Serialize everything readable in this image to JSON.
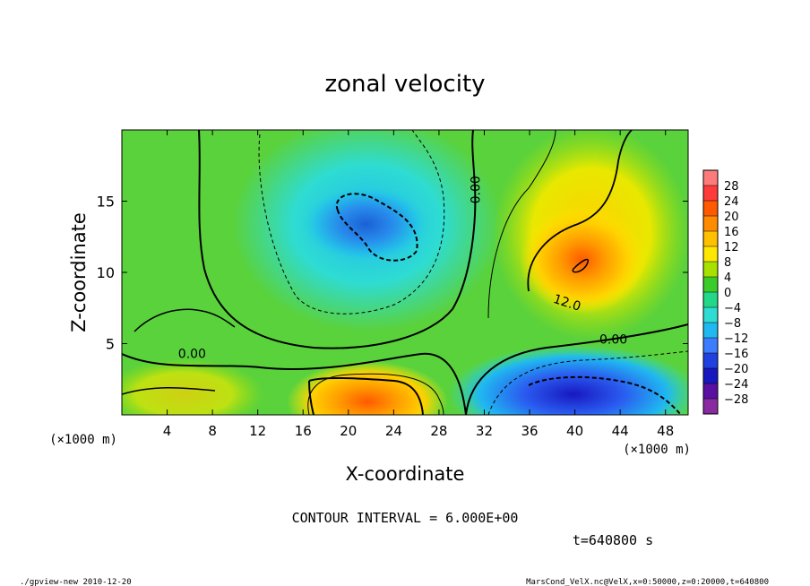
{
  "chart_data": {
    "type": "heatmap",
    "title": "zonal velocity",
    "xlabel": "X-coordinate",
    "ylabel": "Z-coordinate",
    "x_unit_label": "(×1000 m)",
    "y_unit_label": "(×1000 m)",
    "xlim": [
      0,
      50
    ],
    "ylim": [
      0,
      20
    ],
    "x_ticks": [
      4,
      8,
      12,
      16,
      20,
      24,
      28,
      32,
      36,
      40,
      44,
      48
    ],
    "y_ticks": [
      5,
      10,
      15
    ],
    "colorbar_levels": [
      28,
      24,
      20,
      16,
      12,
      8,
      4,
      0,
      -4,
      -8,
      -12,
      -16,
      -20,
      -24,
      -28
    ],
    "colorbar_colors": [
      "#ff7b7b",
      "#ff3a3a",
      "#ff5a00",
      "#ff8c00",
      "#ffc000",
      "#ffe800",
      "#a8e000",
      "#3ccc2a",
      "#22d888",
      "#2edcd2",
      "#20b8f0",
      "#3c7cff",
      "#2040e0",
      "#1818c0",
      "#5a10a0",
      "#8a2aa0"
    ],
    "contour_labels": [
      {
        "text": "0.00",
        "x": 6.2,
        "y": 4.0
      },
      {
        "text": "0.00",
        "x": 31.6,
        "y": 15.8
      },
      {
        "text": "12.0",
        "x": 39.2,
        "y": 7.6
      },
      {
        "text": "0.00",
        "x": 43.4,
        "y": 5.0
      }
    ],
    "features": [
      {
        "kind": "max",
        "x": 40.5,
        "y": 10.5,
        "value": 16
      },
      {
        "kind": "max",
        "x": 22.0,
        "y": 1.0,
        "value": 16
      },
      {
        "kind": "min",
        "x": 40.5,
        "y": 1.0,
        "value": -20
      },
      {
        "kind": "min",
        "x": 21.0,
        "y": 13.0,
        "value": -10
      }
    ],
    "contour_interval": "CONTOUR INTERVAL = 6.000E+00",
    "time_label": "t=640800 s"
  },
  "footer": {
    "left": "./gpview-new  2010-12-20",
    "right": "MarsCond_VelX.nc@VelX,x=0:50000,z=0:20000,t=640800"
  }
}
